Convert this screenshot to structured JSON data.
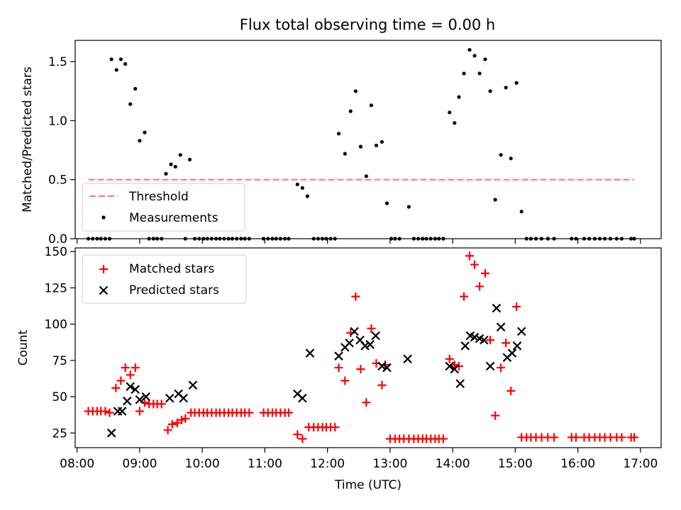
{
  "chart_data": [
    {
      "type": "scatter",
      "title": "Flux total observing time = 0.00 h",
      "xlabel": "",
      "ylabel": "Matched/Predicted stars",
      "xlim": [
        7.97,
        17.33
      ],
      "ylim": [
        0,
        1.68
      ],
      "yticks": [
        0.0,
        0.5,
        1.0,
        1.5
      ],
      "ytick_labels": [
        "0.0",
        "0.5",
        "1.0",
        "1.5"
      ],
      "threshold": {
        "value": 0.5,
        "x": [
          8.18,
          16.9
        ],
        "color": "#f08080"
      },
      "legend": {
        "position": "lower-left",
        "entries": [
          "Threshold",
          "Measurements"
        ]
      },
      "series": [
        {
          "name": "Measurements",
          "marker": "dot",
          "color": "#000000",
          "points": [
            [
              8.18,
              0
            ],
            [
              8.25,
              0
            ],
            [
              8.32,
              0
            ],
            [
              8.38,
              0
            ],
            [
              8.45,
              0
            ],
            [
              8.52,
              0
            ],
            [
              8.55,
              1.52
            ],
            [
              8.63,
              1.43
            ],
            [
              8.7,
              1.52
            ],
            [
              8.77,
              1.48
            ],
            [
              8.85,
              1.14
            ],
            [
              8.93,
              1.27
            ],
            [
              9.0,
              0.83
            ],
            [
              9.08,
              0.9
            ],
            [
              9.15,
              0
            ],
            [
              9.22,
              0
            ],
            [
              9.28,
              0
            ],
            [
              9.35,
              0
            ],
            [
              9.42,
              0.55
            ],
            [
              9.5,
              0.63
            ],
            [
              9.57,
              0.61
            ],
            [
              9.65,
              0.71
            ],
            [
              9.73,
              0
            ],
            [
              9.8,
              0.67
            ],
            [
              9.88,
              0
            ],
            [
              9.95,
              0
            ],
            [
              10.02,
              0
            ],
            [
              10.08,
              0
            ],
            [
              10.15,
              0
            ],
            [
              10.22,
              0
            ],
            [
              10.28,
              0
            ],
            [
              10.35,
              0
            ],
            [
              10.42,
              0
            ],
            [
              10.48,
              0
            ],
            [
              10.55,
              0
            ],
            [
              10.62,
              0
            ],
            [
              10.68,
              0
            ],
            [
              10.75,
              0
            ],
            [
              10.98,
              0
            ],
            [
              11.05,
              0
            ],
            [
              11.12,
              0
            ],
            [
              11.18,
              0
            ],
            [
              11.25,
              0
            ],
            [
              11.32,
              0
            ],
            [
              11.38,
              0
            ],
            [
              11.52,
              0.46
            ],
            [
              11.6,
              0.43
            ],
            [
              11.68,
              0.36
            ],
            [
              11.78,
              0
            ],
            [
              11.85,
              0
            ],
            [
              11.92,
              0
            ],
            [
              11.98,
              0
            ],
            [
              12.05,
              0
            ],
            [
              12.12,
              0
            ],
            [
              12.18,
              0.89
            ],
            [
              12.28,
              0.72
            ],
            [
              12.37,
              1.08
            ],
            [
              12.45,
              1.25
            ],
            [
              12.53,
              0.78
            ],
            [
              12.62,
              0.53
            ],
            [
              12.7,
              1.13
            ],
            [
              12.78,
              0.79
            ],
            [
              12.87,
              0.82
            ],
            [
              12.95,
              0.3
            ],
            [
              13.02,
              0
            ],
            [
              13.08,
              0
            ],
            [
              13.15,
              0
            ],
            [
              13.3,
              0.27
            ],
            [
              13.38,
              0
            ],
            [
              13.45,
              0
            ],
            [
              13.52,
              0
            ],
            [
              13.58,
              0
            ],
            [
              13.65,
              0
            ],
            [
              13.72,
              0
            ],
            [
              13.78,
              0
            ],
            [
              13.85,
              0
            ],
            [
              13.95,
              1.07
            ],
            [
              14.03,
              0.98
            ],
            [
              14.1,
              1.2
            ],
            [
              14.18,
              1.4
            ],
            [
              14.27,
              1.6
            ],
            [
              14.35,
              1.55
            ],
            [
              14.43,
              1.4
            ],
            [
              14.52,
              1.52
            ],
            [
              14.6,
              1.25
            ],
            [
              14.68,
              0.33
            ],
            [
              14.77,
              0.71
            ],
            [
              14.85,
              1.28
            ],
            [
              14.93,
              0.68
            ],
            [
              15.02,
              1.32
            ],
            [
              15.1,
              0.23
            ],
            [
              15.18,
              0
            ],
            [
              15.25,
              0
            ],
            [
              15.33,
              0
            ],
            [
              15.42,
              0
            ],
            [
              15.52,
              0
            ],
            [
              15.62,
              0
            ],
            [
              15.9,
              0
            ],
            [
              15.97,
              0
            ],
            [
              16.1,
              0
            ],
            [
              16.18,
              0
            ],
            [
              16.27,
              0
            ],
            [
              16.35,
              0
            ],
            [
              16.43,
              0
            ],
            [
              16.52,
              0
            ],
            [
              16.62,
              0
            ],
            [
              16.7,
              0
            ],
            [
              16.85,
              0
            ],
            [
              16.9,
              0
            ]
          ]
        }
      ]
    },
    {
      "type": "scatter",
      "title": "",
      "xlabel": "Time (UTC)",
      "ylabel": "Count",
      "xlim": [
        7.97,
        17.33
      ],
      "ylim": [
        14.9,
        152.5
      ],
      "yticks": [
        25,
        50,
        75,
        100,
        125,
        150
      ],
      "ytick_labels": [
        "25",
        "50",
        "75",
        "100",
        "125",
        "150"
      ],
      "xticks": [
        8,
        9,
        10,
        11,
        12,
        13,
        14,
        15,
        16,
        17
      ],
      "xtick_labels": [
        "08:00",
        "09:00",
        "10:00",
        "11:00",
        "12:00",
        "13:00",
        "14:00",
        "15:00",
        "16:00",
        "17:00"
      ],
      "legend": {
        "position": "top-left",
        "entries": [
          "Matched stars",
          "Predicted stars"
        ]
      },
      "series": [
        {
          "name": "Matched stars",
          "marker": "plus",
          "color": "#ff0000",
          "points": [
            [
              8.18,
              40
            ],
            [
              8.25,
              40
            ],
            [
              8.32,
              40
            ],
            [
              8.38,
              40
            ],
            [
              8.45,
              40
            ],
            [
              8.52,
              39
            ],
            [
              8.62,
              56
            ],
            [
              8.7,
              61
            ],
            [
              8.77,
              70
            ],
            [
              8.85,
              65
            ],
            [
              8.93,
              70
            ],
            [
              9.0,
              40
            ],
            [
              9.08,
              46
            ],
            [
              9.15,
              45
            ],
            [
              9.22,
              45
            ],
            [
              9.28,
              45
            ],
            [
              9.35,
              45
            ],
            [
              9.45,
              27
            ],
            [
              9.52,
              31
            ],
            [
              9.6,
              32
            ],
            [
              9.67,
              34
            ],
            [
              9.73,
              35
            ],
            [
              9.82,
              39
            ],
            [
              9.88,
              39
            ],
            [
              9.95,
              39
            ],
            [
              10.02,
              39
            ],
            [
              10.08,
              39
            ],
            [
              10.15,
              39
            ],
            [
              10.22,
              39
            ],
            [
              10.28,
              39
            ],
            [
              10.35,
              39
            ],
            [
              10.42,
              39
            ],
            [
              10.48,
              39
            ],
            [
              10.55,
              39
            ],
            [
              10.62,
              39
            ],
            [
              10.68,
              39
            ],
            [
              10.75,
              39
            ],
            [
              10.98,
              39
            ],
            [
              11.05,
              39
            ],
            [
              11.12,
              39
            ],
            [
              11.18,
              39
            ],
            [
              11.25,
              39
            ],
            [
              11.32,
              39
            ],
            [
              11.38,
              39
            ],
            [
              11.52,
              24
            ],
            [
              11.6,
              21
            ],
            [
              11.7,
              29
            ],
            [
              11.78,
              29
            ],
            [
              11.85,
              29
            ],
            [
              11.92,
              29
            ],
            [
              11.98,
              29
            ],
            [
              12.05,
              29
            ],
            [
              12.12,
              29
            ],
            [
              12.18,
              70
            ],
            [
              12.28,
              61
            ],
            [
              12.37,
              94
            ],
            [
              12.45,
              119
            ],
            [
              12.53,
              69
            ],
            [
              12.62,
              46
            ],
            [
              12.7,
              97
            ],
            [
              12.78,
              73
            ],
            [
              12.87,
              58
            ],
            [
              12.92,
              72
            ],
            [
              13.0,
              21
            ],
            [
              13.08,
              21
            ],
            [
              13.15,
              21
            ],
            [
              13.22,
              21
            ],
            [
              13.3,
              21
            ],
            [
              13.38,
              21
            ],
            [
              13.45,
              21
            ],
            [
              13.52,
              21
            ],
            [
              13.58,
              21
            ],
            [
              13.65,
              21
            ],
            [
              13.72,
              21
            ],
            [
              13.78,
              21
            ],
            [
              13.85,
              21
            ],
            [
              13.95,
              76
            ],
            [
              14.03,
              72
            ],
            [
              14.1,
              71
            ],
            [
              14.18,
              119
            ],
            [
              14.27,
              147
            ],
            [
              14.35,
              141
            ],
            [
              14.43,
              126
            ],
            [
              14.52,
              135
            ],
            [
              14.6,
              89
            ],
            [
              14.68,
              37
            ],
            [
              14.77,
              70
            ],
            [
              14.85,
              87
            ],
            [
              14.93,
              54
            ],
            [
              15.02,
              112
            ],
            [
              15.1,
              22
            ],
            [
              15.18,
              22
            ],
            [
              15.25,
              22
            ],
            [
              15.33,
              22
            ],
            [
              15.42,
              22
            ],
            [
              15.52,
              22
            ],
            [
              15.62,
              22
            ],
            [
              15.9,
              22
            ],
            [
              15.97,
              22
            ],
            [
              16.1,
              22
            ],
            [
              16.18,
              22
            ],
            [
              16.27,
              22
            ],
            [
              16.35,
              22
            ],
            [
              16.43,
              22
            ],
            [
              16.52,
              22
            ],
            [
              16.62,
              22
            ],
            [
              16.7,
              22
            ],
            [
              16.85,
              22
            ],
            [
              16.9,
              22
            ]
          ]
        },
        {
          "name": "Predicted stars",
          "marker": "x",
          "color": "#000000",
          "points": [
            [
              8.55,
              25
            ],
            [
              8.65,
              40
            ],
            [
              8.72,
              40
            ],
            [
              8.8,
              47
            ],
            [
              8.85,
              57
            ],
            [
              8.93,
              55
            ],
            [
              9.0,
              48
            ],
            [
              9.1,
              50
            ],
            [
              9.48,
              49
            ],
            [
              9.62,
              52
            ],
            [
              9.7,
              49
            ],
            [
              9.85,
              58
            ],
            [
              11.52,
              52
            ],
            [
              11.6,
              49
            ],
            [
              11.72,
              80
            ],
            [
              12.18,
              78
            ],
            [
              12.28,
              84
            ],
            [
              12.35,
              87
            ],
            [
              12.43,
              95
            ],
            [
              12.52,
              89
            ],
            [
              12.6,
              85
            ],
            [
              12.68,
              86
            ],
            [
              12.77,
              92
            ],
            [
              12.87,
              71
            ],
            [
              12.95,
              70
            ],
            [
              13.28,
              76
            ],
            [
              13.95,
              71
            ],
            [
              14.03,
              69
            ],
            [
              14.12,
              59
            ],
            [
              14.2,
              85
            ],
            [
              14.28,
              92
            ],
            [
              14.35,
              91
            ],
            [
              14.43,
              90
            ],
            [
              14.5,
              89
            ],
            [
              14.6,
              71
            ],
            [
              14.7,
              111
            ],
            [
              14.77,
              98
            ],
            [
              14.87,
              77
            ],
            [
              14.95,
              80
            ],
            [
              15.03,
              85
            ],
            [
              15.1,
              95
            ]
          ]
        }
      ]
    }
  ]
}
